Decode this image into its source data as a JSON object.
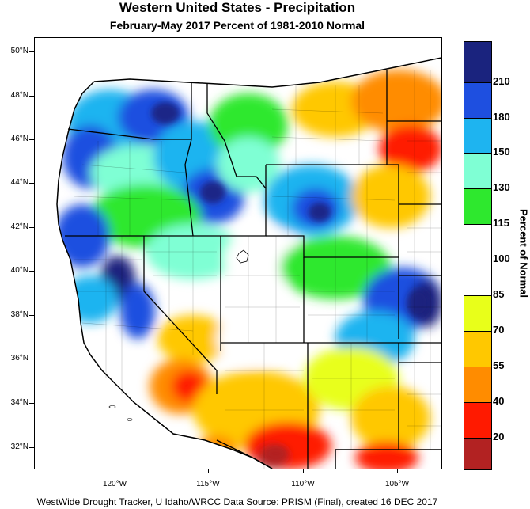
{
  "title": "Western United States - Precipitation",
  "subtitle": "February-May 2017  Percent of 1981-2010 Normal",
  "footer": "WestWide Drought Tracker, U Idaho/WRCC Data Source: PRISM (Final), created 16 DEC 2017",
  "legend": {
    "title": "Percent of Normal",
    "labels": [
      "210",
      "180",
      "150",
      "130",
      "115",
      "100",
      "85",
      "70",
      "55",
      "40",
      "20"
    ],
    "colors": [
      "#1a237e",
      "#1e4fe0",
      "#1eb4f0",
      "#7fffd4",
      "#2ee82e",
      "#ffffff",
      "#e8ff1a",
      "#ffc800",
      "#ff8c00",
      "#ff1a00",
      "#b22222"
    ]
  },
  "latitudes": [
    "50°N",
    "48°N",
    "46°N",
    "44°N",
    "42°N",
    "40°N",
    "38°N",
    "36°N",
    "34°N",
    "32°N"
  ],
  "longitudes": [
    "120°W",
    "115°W",
    "110°W",
    "105°W"
  ],
  "map": {
    "regions": [
      "Washington",
      "Oregon",
      "California",
      "Nevada",
      "Idaho",
      "Montana",
      "Wyoming",
      "Utah",
      "Colorado",
      "Arizona",
      "New Mexico"
    ]
  }
}
